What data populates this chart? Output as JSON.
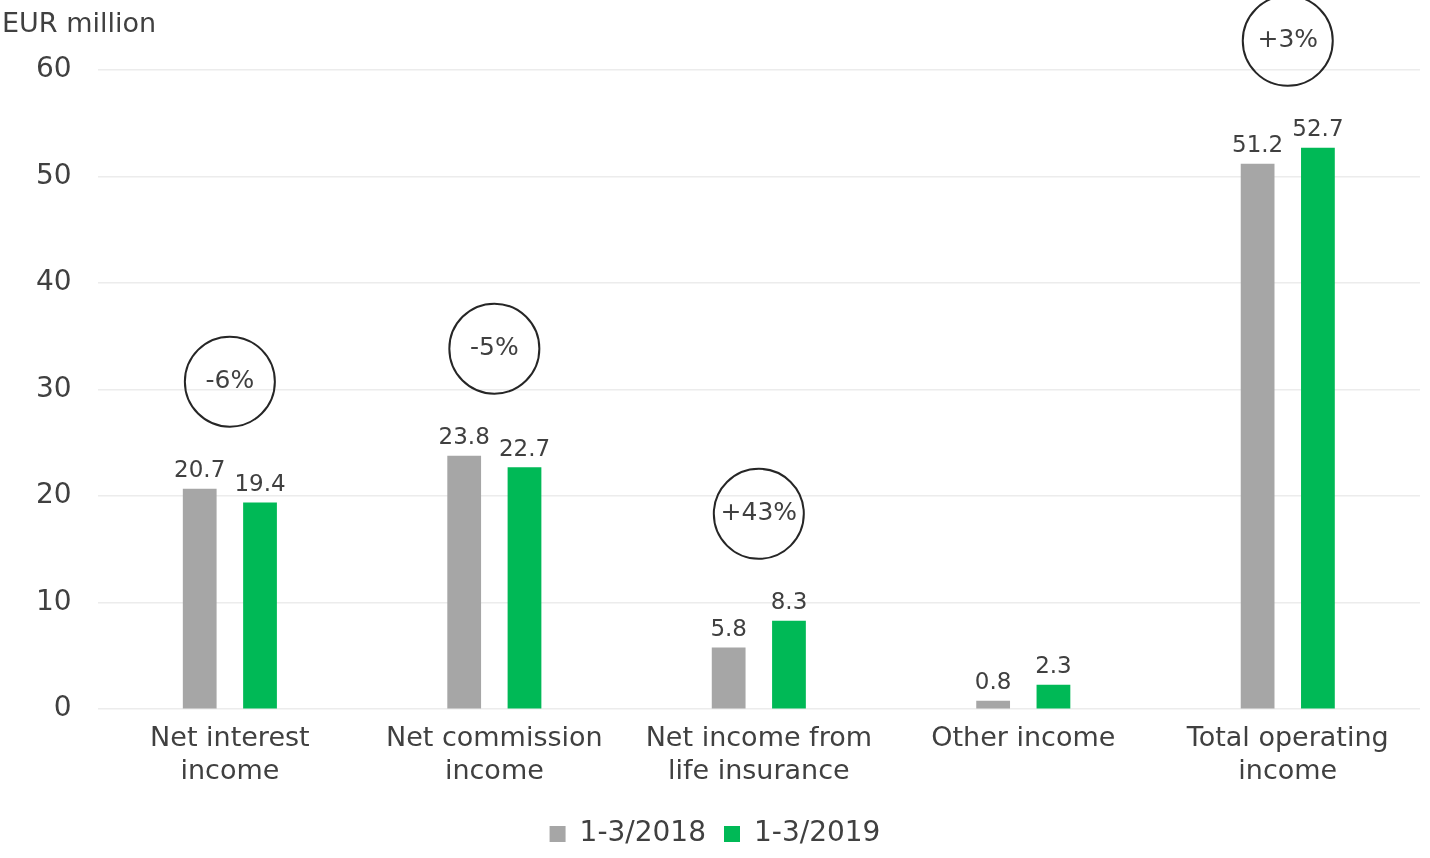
{
  "chart_data": {
    "type": "bar",
    "ylabel": "EUR million",
    "categories": [
      "Net interest income",
      "Net commission income",
      "Net income from life insurance",
      "Other income",
      "Total operating income"
    ],
    "series": [
      {
        "name": "1-3/2018",
        "color": "#a6a6a6",
        "values": [
          20.7,
          23.8,
          5.8,
          0.8,
          51.2
        ]
      },
      {
        "name": "1-3/2019",
        "color": "#00b956",
        "values": [
          19.4,
          22.7,
          8.3,
          2.3,
          52.7
        ]
      }
    ],
    "ylim": [
      0,
      60
    ],
    "yticks": [
      0,
      10,
      20,
      30,
      40,
      50,
      60
    ],
    "grid": "y",
    "legend": "bottom",
    "data_labels": true,
    "annotations": [
      "-6%",
      "-5%",
      "+43%",
      "+3%"
    ]
  }
}
